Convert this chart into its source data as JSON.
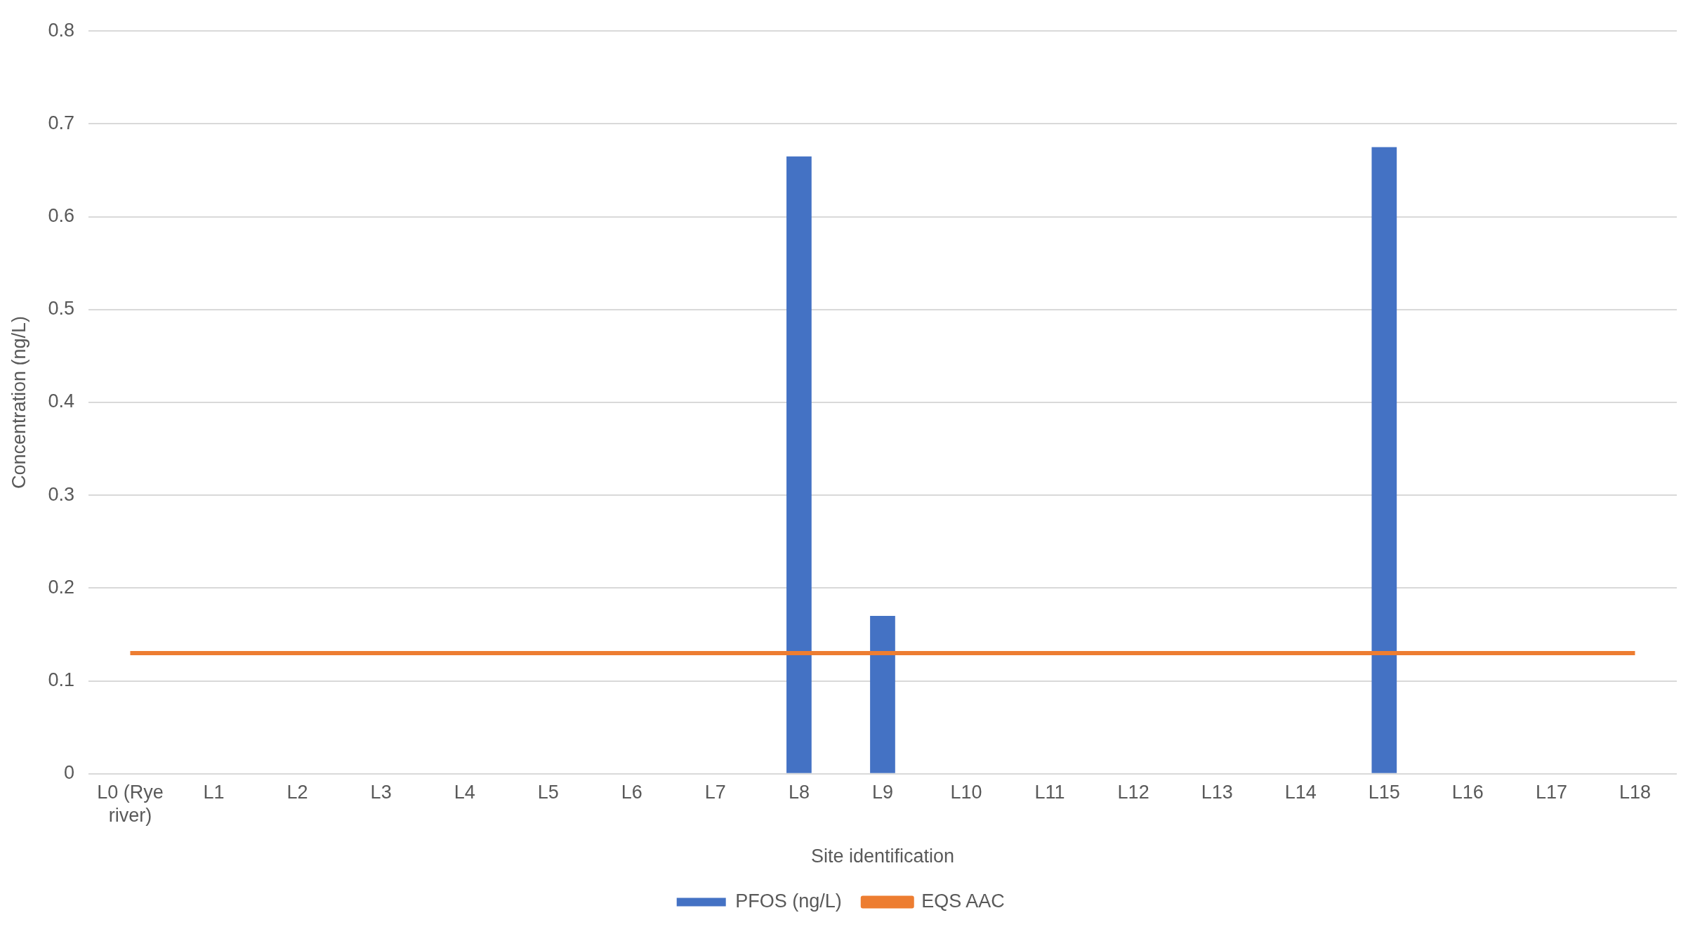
{
  "chart_data": {
    "type": "bar",
    "xlabel": "Site identification",
    "ylabel": "Concentration (ng/L)",
    "categories": [
      "L0 (Rye river)",
      "L1",
      "L2",
      "L3",
      "L4",
      "L5",
      "L6",
      "L7",
      "L8",
      "L9",
      "L10",
      "L11",
      "L12",
      "L13",
      "L14",
      "L15",
      "L16",
      "L17",
      "L18"
    ],
    "series": [
      {
        "name": "PFOS (ng/L)",
        "color": "#4472c4",
        "values": [
          0,
          0,
          0,
          0,
          0,
          0,
          0,
          0,
          0.665,
          0.17,
          0,
          0,
          0,
          0,
          0,
          0.675,
          0,
          0,
          0
        ]
      },
      {
        "name": "EQS AAC",
        "type": "line",
        "color": "#ed7d31",
        "values": [
          0.13,
          0.13,
          0.13,
          0.13,
          0.13,
          0.13,
          0.13,
          0.13,
          0.13,
          0.13,
          0.13,
          0.13,
          0.13,
          0.13,
          0.13,
          0.13,
          0.13,
          0.13,
          0.13
        ]
      }
    ],
    "ylim": [
      0,
      0.8
    ],
    "yticks": [
      0,
      0.1,
      0.2,
      0.3,
      0.4,
      0.5,
      0.6,
      0.7,
      0.8
    ],
    "grid": "y",
    "legend": "bottom",
    "marker": "none"
  }
}
